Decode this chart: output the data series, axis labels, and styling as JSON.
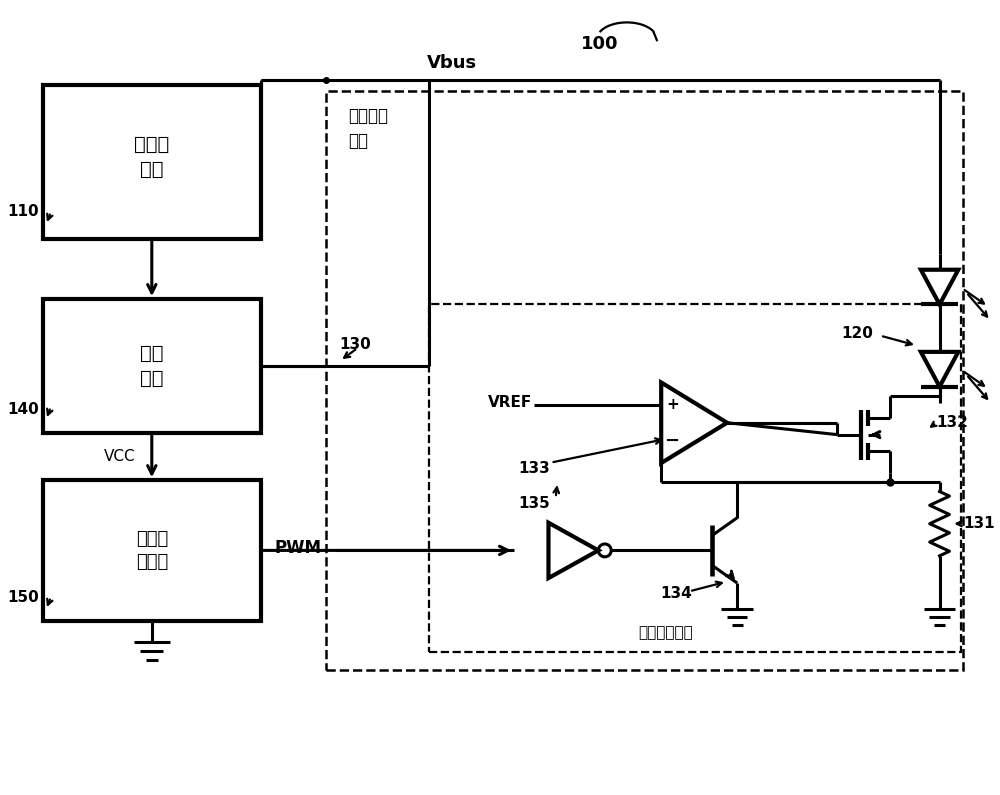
{
  "bg_color": "#ffffff",
  "line_color": "#000000",
  "lw": 2.2,
  "lw_thick": 3.0,
  "lw_thin": 1.6,
  "fig_width": 10.0,
  "fig_height": 7.95,
  "labels": {
    "vbus": "Vbus",
    "vcc": "VCC",
    "pwm": "PWM",
    "vref": "VREF",
    "n100": "100",
    "n110": "110",
    "n120": "120",
    "n130": "130",
    "n131": "131",
    "n132": "132",
    "n133": "133",
    "n134": "134",
    "n135": "135",
    "n140": "140",
    "n150": "150",
    "box_input": "输入电\n压源",
    "box_supply": "供电\n模块",
    "box_control": "智能控\n制模块",
    "label_drive_module": "线性驱动\n模块",
    "label_drive_circuit": "线性驱动电路"
  }
}
